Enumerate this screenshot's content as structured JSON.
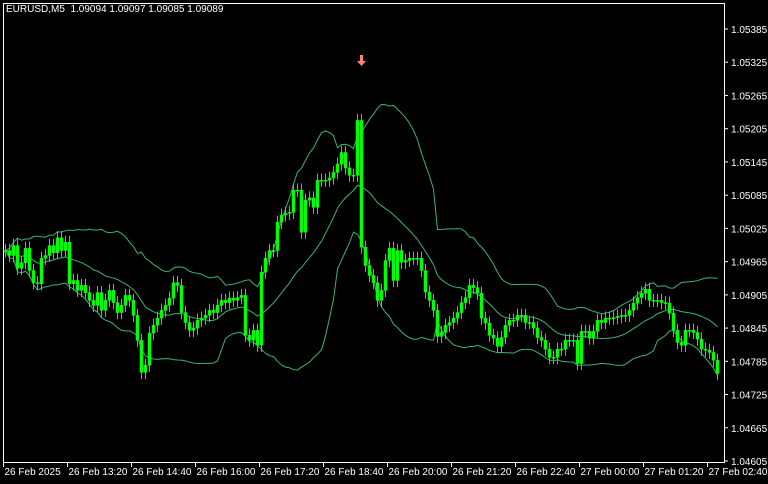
{
  "header": {
    "symbol_text": "EURUSD,M5  1.09094 1.09097 1.09085 1.09089"
  },
  "colors": {
    "background": "#000000",
    "candle": "#00ff00",
    "bands": "#3cb371",
    "frame": "#ffffff",
    "sell_arrow": "#ff7f7f"
  },
  "chart_data": {
    "type": "candlestick",
    "symbol": "EURUSD",
    "timeframe": "M5",
    "indicator": "Bollinger Bands",
    "ylim": [
      1.04605,
      1.05385
    ],
    "y_ticks": [
      "1.05385",
      "1.05325",
      "1.05265",
      "1.05205",
      "1.05145",
      "1.05085",
      "1.05025",
      "1.04965",
      "1.04905",
      "1.04845",
      "1.04785",
      "1.04725",
      "1.04665",
      "1.04605"
    ],
    "x_ticks": [
      "26 Feb 2025",
      "26 Feb 13:20",
      "26 Feb 14:40",
      "26 Feb 16:00",
      "26 Feb 17:20",
      "26 Feb 18:40",
      "26 Feb 20:00",
      "26 Feb 21:20",
      "26 Feb 22:40",
      "27 Feb 00:00",
      "27 Feb 01:20",
      "27 Feb 02:40"
    ],
    "closes": [
      1.04985,
      1.04976,
      1.04994,
      1.04953,
      1.04963,
      1.04989,
      1.04949,
      1.04927,
      1.04925,
      1.04971,
      1.04976,
      1.04994,
      1.04981,
      1.05008,
      1.04985,
      1.05,
      1.04925,
      1.04931,
      1.04913,
      1.04922,
      1.04909,
      1.04895,
      1.04886,
      1.04909,
      1.04877,
      1.04895,
      1.04913,
      1.04891,
      1.04873,
      1.04886,
      1.04904,
      1.04895,
      1.04868,
      1.04823,
      1.04765,
      1.04778,
      1.04836,
      1.0485,
      1.04863,
      1.04877,
      1.04886,
      1.04899,
      1.04927,
      1.04922,
      1.04873,
      1.04855,
      1.04841,
      1.04845,
      1.04859,
      1.04863,
      1.04868,
      1.04877,
      1.04873,
      1.04886,
      1.04895,
      1.04891,
      1.04899,
      1.04895,
      1.049,
      1.04904,
      1.04832,
      1.04823,
      1.04841,
      1.04814,
      1.04946,
      1.04971,
      1.04985,
      1.04985,
      1.05036,
      1.05049,
      1.05052,
      1.05054,
      1.05094,
      1.05094,
      1.05018,
      1.05076,
      1.0508,
      1.05063,
      1.05112,
      1.05112,
      1.05112,
      1.05116,
      1.05126,
      1.05141,
      1.05162,
      1.05134,
      1.05121,
      1.05121,
      1.0522,
      1.04991,
      1.04958,
      1.0494,
      1.04927,
      1.04895,
      1.04913,
      1.04967,
      1.04989,
      1.04931,
      1.04985,
      1.04964,
      1.04967,
      1.04971,
      1.04971,
      1.04971,
      1.04949,
      1.0491,
      1.04895,
      1.04877,
      1.0483,
      1.04837,
      1.0485,
      1.04855,
      1.04863,
      1.04873,
      1.04891,
      1.049,
      1.04922,
      1.04918,
      1.04908,
      1.04863,
      1.04854,
      1.04832,
      1.04827,
      1.04812,
      1.04828,
      1.0485,
      1.04859,
      1.04859,
      1.04868,
      1.04868,
      1.04855,
      1.04855,
      1.04845,
      1.04828,
      1.04823,
      1.04807,
      1.04792,
      1.04792,
      1.04807,
      1.04807,
      1.04823,
      1.04823,
      1.04823,
      1.04781,
      1.04839,
      1.04839,
      1.04827,
      1.04839,
      1.04859,
      1.04855,
      1.04863,
      1.04863,
      1.04864,
      1.04866,
      1.04868,
      1.04868,
      1.04877,
      1.0489,
      1.049,
      1.04908,
      1.04915,
      1.04895,
      1.04895,
      1.04895,
      1.04891,
      1.0489,
      1.04872,
      1.04841,
      1.04819,
      1.04814,
      1.04841,
      1.04841,
      1.04837,
      1.04825,
      1.04807,
      1.04805,
      1.04801,
      1.04787,
      1.04763
    ],
    "annotations": [
      {
        "type": "sell-arrow",
        "bar": 89
      }
    ]
  }
}
